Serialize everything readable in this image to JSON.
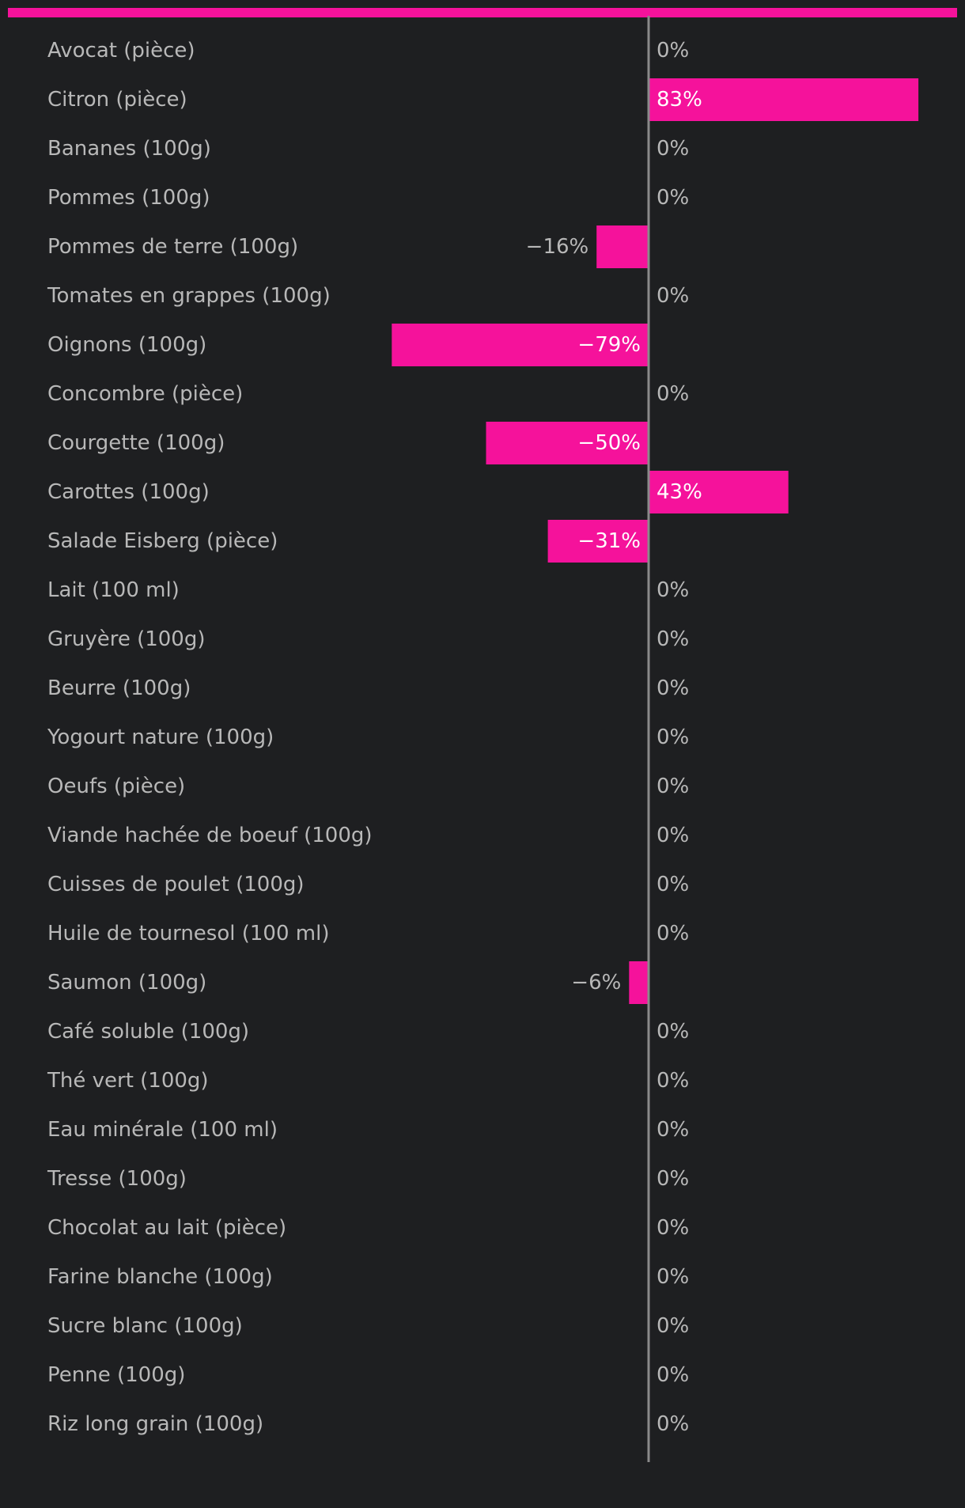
{
  "colors": {
    "background": "#1e1f21",
    "accent": "#f5129b",
    "axis": "#8a8a8a",
    "label": "#b8b8b8",
    "value_inside": "#ffffff"
  },
  "chart_data": {
    "type": "bar",
    "orientation": "horizontal",
    "title": "",
    "xlabel": "",
    "ylabel": "",
    "xlim": [
      -100,
      100
    ],
    "grid": false,
    "legend": "none",
    "value_suffix": "%",
    "categories": [
      "Avocat (pièce)",
      "Citron (pièce)",
      "Bananes (100g)",
      "Pommes (100g)",
      "Pommes de terre (100g)",
      "Tomates en grappes (100g)",
      "Oignons (100g)",
      "Concombre (pièce)",
      "Courgette (100g)",
      "Carottes (100g)",
      "Salade Eisberg (pièce)",
      "Lait (100 ml)",
      "Gruyère (100g)",
      "Beurre (100g)",
      "Yogourt nature (100g)",
      "Oeufs (pièce)",
      "Viande hachée de boeuf (100g)",
      "Cuisses de poulet (100g)",
      "Huile de tournesol (100 ml)",
      "Saumon (100g)",
      "Café soluble (100g)",
      "Thé vert (100g)",
      "Eau minérale (100 ml)",
      "Tresse (100g)",
      "Chocolat au lait (pièce)",
      "Farine blanche (100g)",
      "Sucre blanc (100g)",
      "Penne (100g)",
      "Riz long grain (100g)"
    ],
    "values": [
      0,
      83,
      0,
      0,
      -16,
      0,
      -79,
      0,
      -50,
      43,
      -31,
      0,
      0,
      0,
      0,
      0,
      0,
      0,
      0,
      -6,
      0,
      0,
      0,
      0,
      0,
      0,
      0,
      0,
      0
    ],
    "value_labels": [
      "0%",
      "83%",
      "0%",
      "0%",
      "−16%",
      "0%",
      "−79%",
      "0%",
      "−50%",
      "43%",
      "−31%",
      "0%",
      "0%",
      "0%",
      "0%",
      "0%",
      "0%",
      "0%",
      "0%",
      "−6%",
      "0%",
      "0%",
      "0%",
      "0%",
      "0%",
      "0%",
      "0%",
      "0%",
      "0%"
    ]
  }
}
